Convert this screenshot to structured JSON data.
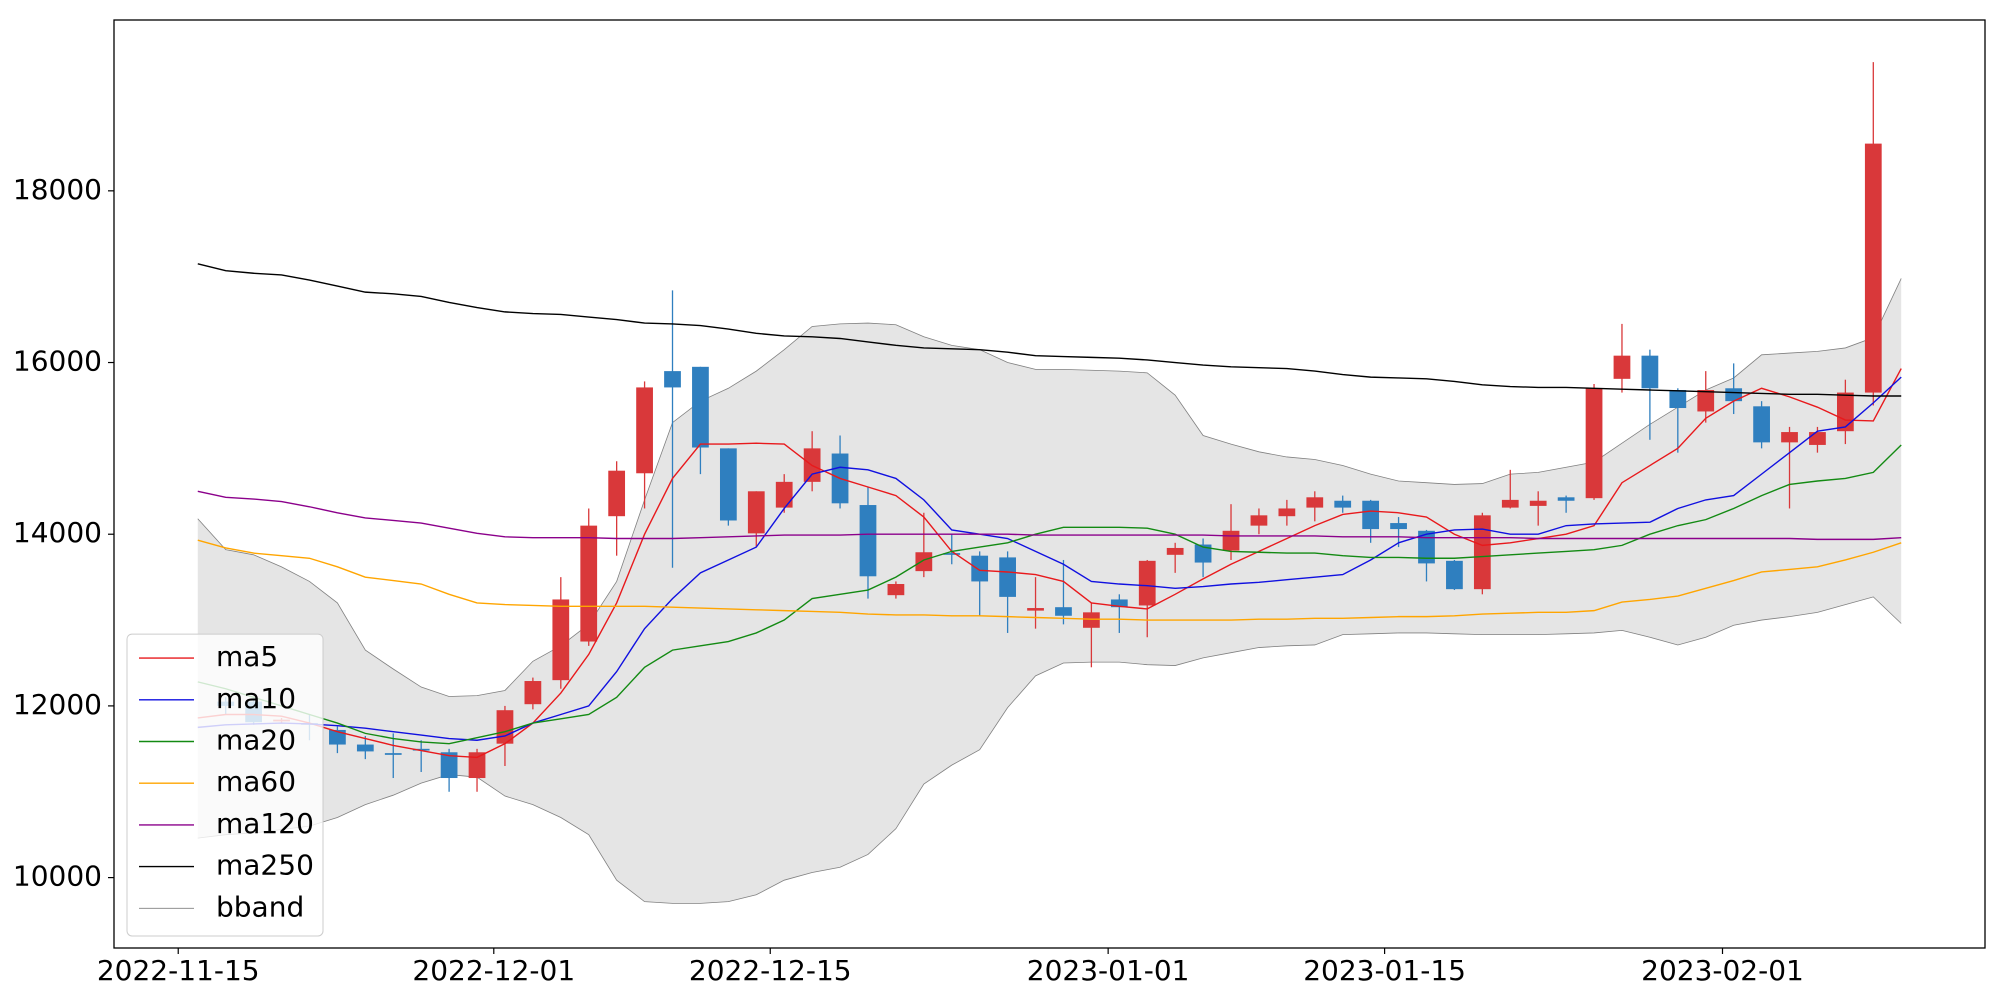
{
  "chart_data": {
    "type": "candlestick",
    "xlim": [
      -3.0,
      64.0
    ],
    "xticks": [
      {
        "value": -0.7,
        "label": "2022-11-15"
      },
      {
        "value": 10.6,
        "label": "2022-12-01"
      },
      {
        "value": 20.5,
        "label": "2022-12-15"
      },
      {
        "value": 32.6,
        "label": "2023-01-01"
      },
      {
        "value": 42.5,
        "label": "2023-01-15"
      },
      {
        "value": 54.6,
        "label": "2023-02-01"
      }
    ],
    "ylim": [
      9180,
      19990
    ],
    "yticks": [
      10000,
      12000,
      14000,
      16000,
      18000
    ],
    "up_color": "#d9383a",
    "down_color": "#2f7fbf",
    "legend": "lower left",
    "open": [
      null,
      12050,
      12050,
      11820,
      11800,
      11720,
      11550,
      11450,
      11500,
      11460,
      11160,
      11560,
      12020,
      12300,
      12750,
      14210,
      14710,
      15900,
      15950,
      15000,
      14010,
      14310,
      14610,
      14940,
      14340,
      13290,
      13570,
      13780,
      13750,
      13730,
      13110,
      13150,
      12910,
      13240,
      13170,
      13760,
      13880,
      13810,
      14100,
      14210,
      14310,
      14390,
      14390,
      14130,
      14040,
      13690,
      13360,
      14310,
      14330,
      14430,
      14420,
      15810,
      16080,
      15680,
      15430,
      15700,
      15490,
      15070,
      15040,
      15200,
      15650,
      null
    ],
    "high": [
      null,
      12100,
      12100,
      11860,
      11900,
      11760,
      11650,
      11680,
      11600,
      11500,
      11500,
      12000,
      12330,
      13500,
      14300,
      14850,
      15780,
      16840,
      15950,
      15000,
      14500,
      14700,
      15200,
      15150,
      14550,
      13450,
      14250,
      14000,
      13800,
      13800,
      13500,
      13700,
      13200,
      13300,
      13700,
      13900,
      13950,
      14350,
      14300,
      14400,
      14500,
      14450,
      14400,
      14200,
      14050,
      13700,
      14250,
      14750,
      14500,
      14450,
      15750,
      16450,
      16150,
      15700,
      15900,
      15990,
      15550,
      15250,
      15250,
      15800,
      19500,
      null
    ],
    "low": [
      null,
      11900,
      11780,
      11800,
      11600,
      11450,
      11380,
      11160,
      11230,
      11000,
      11000,
      11300,
      11960,
      12200,
      12700,
      13750,
      14300,
      13610,
      14700,
      14100,
      13850,
      14250,
      14500,
      14300,
      13250,
      13250,
      13500,
      13650,
      13050,
      12850,
      12900,
      12950,
      12450,
      12850,
      12800,
      13550,
      13500,
      13700,
      14000,
      14100,
      14150,
      14250,
      13900,
      13850,
      13450,
      13350,
      13300,
      14300,
      14100,
      14250,
      14400,
      15650,
      15100,
      14950,
      15300,
      15400,
      15000,
      14300,
      14950,
      15050,
      15500,
      null
    ],
    "close": [
      null,
      12000,
      11810,
      11840,
      11780,
      11550,
      11470,
      11430,
      11480,
      11160,
      11460,
      11950,
      12290,
      13240,
      14100,
      14740,
      15710,
      15710,
      15010,
      14160,
      14500,
      14610,
      15000,
      14360,
      13510,
      13420,
      13790,
      13760,
      13450,
      13270,
      13140,
      13050,
      13090,
      13150,
      13690,
      13840,
      13670,
      14040,
      14220,
      14300,
      14430,
      14310,
      14060,
      14060,
      13660,
      13360,
      14220,
      14400,
      14390,
      14390,
      15700,
      16080,
      15700,
      15470,
      15680,
      15550,
      15070,
      15190,
      15190,
      15650,
      18550,
      null
    ],
    "series": [
      {
        "name": "ma5",
        "color": "#e8191c",
        "values": [
          11860,
          11900,
          11900,
          11880,
          11800,
          11700,
          11620,
          11540,
          11480,
          11420,
          11400,
          11560,
          11800,
          12150,
          12600,
          13200,
          14000,
          14650,
          15050,
          15050,
          15060,
          15050,
          14800,
          14650,
          14550,
          14450,
          14200,
          13800,
          13580,
          13560,
          13530,
          13450,
          13200,
          13160,
          13130,
          13300,
          13480,
          13650,
          13800,
          13950,
          14100,
          14230,
          14270,
          14250,
          14200,
          14000,
          13870,
          13900,
          13950,
          14000,
          14100,
          14600,
          14800,
          15000,
          15350,
          15550,
          15700,
          15600,
          15480,
          15330,
          15320,
          15930
        ]
      },
      {
        "name": "ma10",
        "color": "#1010e0",
        "values": [
          11750,
          11780,
          11790,
          11800,
          11790,
          11770,
          11740,
          11700,
          11660,
          11620,
          11600,
          11650,
          11800,
          11900,
          12000,
          12400,
          12900,
          13250,
          13550,
          13700,
          13850,
          14300,
          14700,
          14780,
          14750,
          14650,
          14400,
          14050,
          14000,
          13950,
          13800,
          13650,
          13450,
          13420,
          13400,
          13370,
          13390,
          13420,
          13440,
          13470,
          13500,
          13530,
          13700,
          13900,
          14000,
          14050,
          14060,
          14000,
          14000,
          14100,
          14120,
          14130,
          14140,
          14300,
          14400,
          14450,
          14700,
          14950,
          15200,
          15250,
          15530,
          15830
        ]
      },
      {
        "name": "ma20",
        "color": "#138a13",
        "values": [
          12280,
          12200,
          12100,
          12000,
          11900,
          11800,
          11680,
          11620,
          11580,
          11560,
          11630,
          11700,
          11800,
          11850,
          11900,
          12100,
          12450,
          12650,
          12700,
          12750,
          12850,
          13000,
          13250,
          13300,
          13350,
          13500,
          13700,
          13800,
          13850,
          13900,
          14000,
          14080,
          14080,
          14080,
          14070,
          14000,
          13850,
          13800,
          13790,
          13780,
          13780,
          13750,
          13730,
          13730,
          13720,
          13720,
          13740,
          13760,
          13780,
          13800,
          13820,
          13870,
          14000,
          14100,
          14170,
          14300,
          14450,
          14580,
          14620,
          14650,
          14720,
          15040
        ]
      },
      {
        "name": "ma60",
        "color": "#ffa500",
        "values": [
          13930,
          13840,
          13780,
          13750,
          13720,
          13620,
          13500,
          13460,
          13420,
          13300,
          13200,
          13180,
          13170,
          13160,
          13160,
          13160,
          13160,
          13150,
          13140,
          13130,
          13120,
          13110,
          13100,
          13090,
          13070,
          13060,
          13060,
          13050,
          13050,
          13040,
          13030,
          13020,
          13010,
          13010,
          13000,
          13000,
          13000,
          13000,
          13010,
          13010,
          13020,
          13020,
          13030,
          13040,
          13040,
          13050,
          13070,
          13080,
          13090,
          13090,
          13110,
          13210,
          13240,
          13280,
          13370,
          13460,
          13560,
          13590,
          13620,
          13700,
          13790,
          13900
        ]
      },
      {
        "name": "ma120",
        "color": "#8b008b",
        "values": [
          14500,
          14430,
          14410,
          14380,
          14320,
          14250,
          14190,
          14160,
          14130,
          14070,
          14010,
          13970,
          13960,
          13960,
          13960,
          13950,
          13950,
          13950,
          13960,
          13970,
          13980,
          13990,
          13990,
          13990,
          14000,
          14000,
          14000,
          14000,
          14000,
          14000,
          13990,
          13990,
          13990,
          13990,
          13990,
          13990,
          13990,
          13980,
          13980,
          13980,
          13980,
          13970,
          13970,
          13970,
          13960,
          13960,
          13960,
          13960,
          13950,
          13950,
          13950,
          13950,
          13950,
          13950,
          13950,
          13950,
          13950,
          13950,
          13940,
          13940,
          13940,
          13960
        ]
      },
      {
        "name": "ma250",
        "color": "#000000",
        "values": [
          17150,
          17070,
          17040,
          17020,
          16960,
          16890,
          16820,
          16800,
          16770,
          16700,
          16640,
          16590,
          16570,
          16560,
          16530,
          16500,
          16460,
          16450,
          16430,
          16390,
          16340,
          16310,
          16300,
          16280,
          16240,
          16200,
          16170,
          16160,
          16150,
          16120,
          16080,
          16070,
          16060,
          16050,
          16030,
          16000,
          15970,
          15950,
          15940,
          15930,
          15900,
          15860,
          15830,
          15820,
          15810,
          15780,
          15740,
          15720,
          15710,
          15710,
          15700,
          15690,
          15680,
          15670,
          15660,
          15650,
          15640,
          15630,
          15630,
          15620,
          15610,
          15610
        ]
      }
    ],
    "band": {
      "name": "bband",
      "color": "#808080",
      "fill": "#e5e5e5",
      "upper": [
        14180,
        13820,
        13760,
        13620,
        13450,
        13200,
        12650,
        12430,
        12220,
        12110,
        12120,
        12180,
        12520,
        12700,
        12950,
        13450,
        14400,
        15300,
        15550,
        15700,
        15900,
        16150,
        16420,
        16450,
        16460,
        16440,
        16300,
        16200,
        16150,
        16000,
        15920,
        15920,
        15910,
        15900,
        15880,
        15620,
        15150,
        15050,
        14960,
        14900,
        14870,
        14800,
        14700,
        14620,
        14600,
        14580,
        14590,
        14700,
        14720,
        14780,
        14840,
        15060,
        15280,
        15480,
        15680,
        15820,
        16090,
        16110,
        16130,
        16170,
        16290,
        16980
      ],
      "lower": [
        10460,
        10500,
        10520,
        10560,
        10600,
        10700,
        10850,
        10960,
        11100,
        11200,
        11170,
        10950,
        10850,
        10700,
        10500,
        9970,
        9720,
        9700,
        9700,
        9720,
        9800,
        9970,
        10060,
        10120,
        10270,
        10570,
        11090,
        11310,
        11490,
        11980,
        12350,
        12500,
        12510,
        12510,
        12480,
        12470,
        12560,
        12620,
        12680,
        12700,
        12710,
        12830,
        12840,
        12850,
        12850,
        12840,
        12830,
        12830,
        12830,
        12840,
        12850,
        12880,
        12800,
        12710,
        12800,
        12940,
        13000,
        13040,
        13090,
        13180,
        13270,
        12960
      ]
    }
  }
}
